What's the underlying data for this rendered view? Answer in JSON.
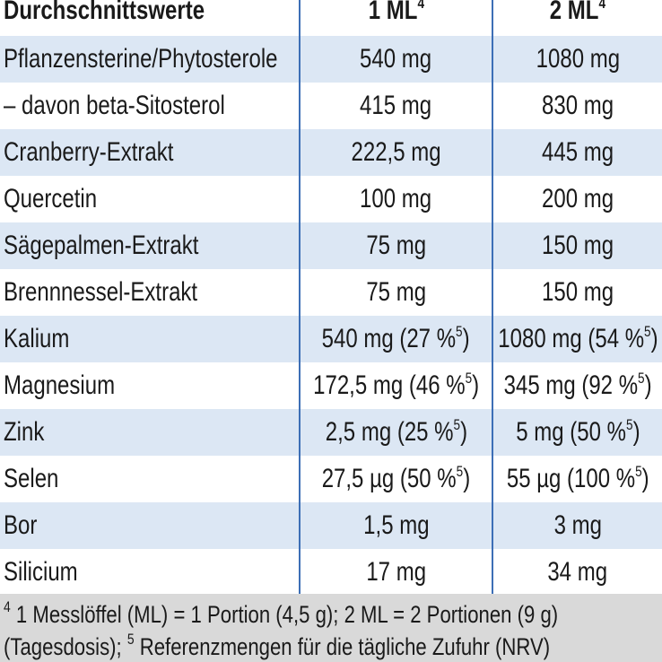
{
  "table": {
    "header": [
      [
        {
          "text": "Durchschnittswerte"
        }
      ],
      [
        {
          "text": "1 ML"
        },
        {
          "sup": "4"
        }
      ],
      [
        {
          "text": "2 ML"
        },
        {
          "sup": "4"
        }
      ]
    ],
    "rows": [
      [
        [
          {
            "text": "Pflanzensterine/Phytosterole"
          }
        ],
        [
          {
            "text": "540 mg"
          }
        ],
        [
          {
            "text": "1080 mg"
          }
        ]
      ],
      [
        [
          {
            "text": "– davon beta-Sitosterol"
          }
        ],
        [
          {
            "text": "415 mg"
          }
        ],
        [
          {
            "text": "830 mg"
          }
        ]
      ],
      [
        [
          {
            "text": "Cranberry-Extrakt"
          }
        ],
        [
          {
            "text": "222,5 mg"
          }
        ],
        [
          {
            "text": "445 mg"
          }
        ]
      ],
      [
        [
          {
            "text": "Quercetin"
          }
        ],
        [
          {
            "text": "100 mg"
          }
        ],
        [
          {
            "text": "200 mg"
          }
        ]
      ],
      [
        [
          {
            "text": "Sägepalmen-Extrakt"
          }
        ],
        [
          {
            "text": "75 mg"
          }
        ],
        [
          {
            "text": "150 mg"
          }
        ]
      ],
      [
        [
          {
            "text": "Brennnessel-Extrakt"
          }
        ],
        [
          {
            "text": "75 mg"
          }
        ],
        [
          {
            "text": "150 mg"
          }
        ]
      ],
      [
        [
          {
            "text": "Kalium"
          }
        ],
        [
          {
            "text": "540 mg (27 %"
          },
          {
            "sup": "5"
          },
          {
            "text": ")"
          }
        ],
        [
          {
            "text": "1080 mg (54 %"
          },
          {
            "sup": "5"
          },
          {
            "text": ")"
          }
        ]
      ],
      [
        [
          {
            "text": "Magnesium"
          }
        ],
        [
          {
            "text": "172,5 mg (46 %"
          },
          {
            "sup": "5"
          },
          {
            "text": ")"
          }
        ],
        [
          {
            "text": "345 mg (92 %"
          },
          {
            "sup": "5"
          },
          {
            "text": ")"
          }
        ]
      ],
      [
        [
          {
            "text": "Zink"
          }
        ],
        [
          {
            "text": "2,5 mg (25 %"
          },
          {
            "sup": "5"
          },
          {
            "text": ")"
          }
        ],
        [
          {
            "text": "5 mg (50 %"
          },
          {
            "sup": "5"
          },
          {
            "text": ")"
          }
        ]
      ],
      [
        [
          {
            "text": "Selen"
          }
        ],
        [
          {
            "text": "27,5 µg (50 %"
          },
          {
            "sup": "5"
          },
          {
            "text": ")"
          }
        ],
        [
          {
            "text": "55 µg (100 %"
          },
          {
            "sup": "5"
          },
          {
            "text": ")"
          }
        ]
      ],
      [
        [
          {
            "text": "Bor"
          }
        ],
        [
          {
            "text": "1,5 mg"
          }
        ],
        [
          {
            "text": "3 mg"
          }
        ]
      ],
      [
        [
          {
            "text": "Silicium"
          }
        ],
        [
          {
            "text": "17 mg"
          }
        ],
        [
          {
            "text": "34 mg"
          }
        ]
      ]
    ],
    "footnotes": [
      [
        {
          "sup": "4"
        },
        {
          "text": " 1 Messlöffel (ML) = 1 Portion (4,5 g); 2 ML = 2 Portionen (9 g)"
        }
      ],
      [
        {
          "text": "(Tagesdosis); "
        },
        {
          "sup": "5"
        },
        {
          "text": " Referenzmengen für die tägliche Zufuhr (NRV)"
        }
      ]
    ]
  }
}
